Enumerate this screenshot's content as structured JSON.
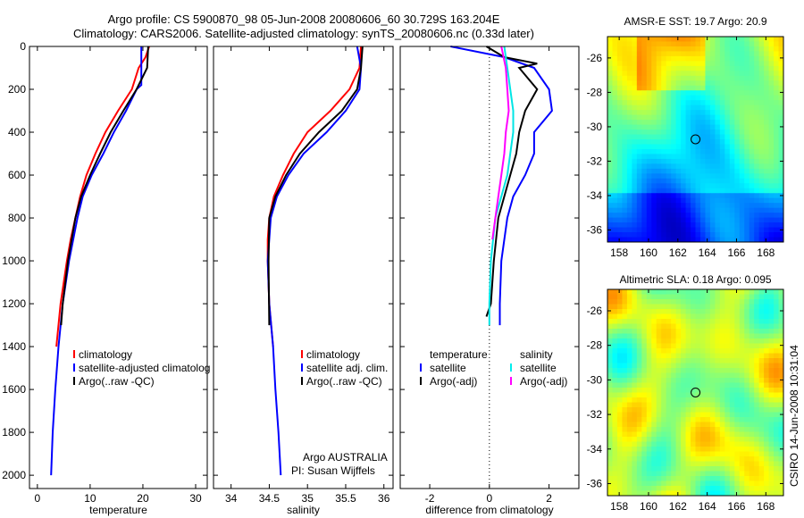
{
  "title": {
    "line1": "Argo profile: CS 5900870_98 05-Jun-2008 20080606_60 30.729S 163.204E",
    "line2": "Climatology: CARS2006. Satellite-adjusted climatology: synTS_20080606.nc (0.33d later)"
  },
  "annotations": {
    "argo_australia": "Argo AUSTRALIA",
    "pi": "PI: Susan Wijffels",
    "csiro": "CSIRO 14-Jun-2008 10:31:04"
  },
  "chart_data": [
    {
      "type": "line",
      "name": "temperature",
      "xlabel": "temperature",
      "ylabel": "",
      "xlim": [
        -1.5,
        32.2
      ],
      "ylim": [
        2062,
        0
      ],
      "xticks": [
        0,
        10,
        20,
        30
      ],
      "xtick_labels": [
        "0",
        "10",
        "20",
        "30"
      ],
      "yticks": [
        0,
        200,
        400,
        600,
        800,
        1000,
        1200,
        1400,
        1600,
        1800,
        2000
      ],
      "ytick_labels": [
        "0",
        "200",
        "400",
        "600",
        "800",
        "1000",
        "1200",
        "1400",
        "1600",
        "1800",
        "2000"
      ],
      "legend": [
        "climatology",
        "satellite-adjusted climatolog",
        "Argo(..raw -QC)"
      ],
      "series": [
        {
          "name": "climatology",
          "color": "#ff0000",
          "depth": [
            0,
            50,
            100,
            200,
            300,
            400,
            500,
            600,
            700,
            800,
            900,
            1000,
            1200,
            1400
          ],
          "values": [
            21.2,
            20.5,
            19.2,
            17.9,
            15.3,
            12.9,
            11.0,
            9.3,
            8.1,
            7.2,
            6.3,
            5.6,
            4.4,
            3.6
          ]
        },
        {
          "name": "satellite-adjusted climatology",
          "color": "#0000ff",
          "depth": [
            0,
            180,
            200,
            300,
            400,
            500,
            600,
            700,
            800,
            1000,
            1200,
            1400,
            1600,
            1800,
            2000
          ],
          "values": [
            19.7,
            19.7,
            18.8,
            16.8,
            14.5,
            12.5,
            10.3,
            8.6,
            7.6,
            6.0,
            4.8,
            4.0,
            3.4,
            2.9,
            2.6
          ]
        },
        {
          "name": "Argo(..raw -QC)",
          "color": "#000000",
          "depth": [
            0,
            100,
            150,
            200,
            300,
            400,
            500,
            600,
            700,
            800,
            1000,
            1200,
            1300
          ],
          "values": [
            21.0,
            20.8,
            19.8,
            18.8,
            16.3,
            13.9,
            11.9,
            10.0,
            8.3,
            7.2,
            5.8,
            4.8,
            4.5
          ]
        }
      ]
    },
    {
      "type": "line",
      "name": "salinity",
      "xlabel": "salinity",
      "xlim": [
        33.77,
        36.12
      ],
      "ylim": [
        2062,
        0
      ],
      "xticks": [
        34,
        34.5,
        35,
        35.5,
        36
      ],
      "xtick_labels": [
        "34",
        "34.5",
        "35",
        "35.5",
        "36"
      ],
      "legend": [
        "climatology",
        "satellite adj. clim.",
        "Argo(..raw -QC)"
      ],
      "series": [
        {
          "name": "climatology",
          "color": "#ff0000",
          "depth": [
            0,
            100,
            200,
            300,
            400,
            500,
            600,
            700,
            800,
            900,
            1000,
            1200,
            1400
          ],
          "values": [
            35.7,
            35.68,
            35.55,
            35.3,
            35.0,
            34.82,
            34.68,
            34.56,
            34.5,
            34.48,
            34.48,
            34.5,
            34.55
          ]
        },
        {
          "name": "satellite adj. clim.",
          "color": "#0000ff",
          "depth": [
            0,
            100,
            200,
            300,
            400,
            500,
            600,
            700,
            800,
            1000,
            1200,
            1400,
            1600,
            1800,
            2000
          ],
          "values": [
            35.65,
            35.7,
            35.68,
            35.5,
            35.25,
            34.95,
            34.75,
            34.6,
            34.52,
            34.48,
            34.5,
            34.55,
            34.58,
            34.62,
            34.65
          ]
        },
        {
          "name": "Argo(..raw -QC)",
          "color": "#000000",
          "depth": [
            0,
            100,
            200,
            300,
            400,
            500,
            600,
            700,
            800,
            1000,
            1300
          ],
          "values": [
            35.72,
            35.7,
            35.65,
            35.45,
            35.15,
            34.9,
            34.72,
            34.58,
            34.5,
            34.49,
            34.5
          ]
        }
      ]
    },
    {
      "type": "line",
      "name": "difference",
      "xlabel": "difference from climatology",
      "xlim": [
        -2.99,
        3.0
      ],
      "ylim": [
        2062,
        0
      ],
      "xticks": [
        -2,
        0,
        2
      ],
      "xtick_labels": [
        "-2",
        "0",
        "2"
      ],
      "legend_headers": [
        "temperature",
        "salinity"
      ],
      "legend": [
        "satellite",
        "Argo(-adj)",
        "satellite",
        "Argo(-adj)"
      ],
      "series": [
        {
          "name": "temperature satellite",
          "color": "#0000ff",
          "depth": [
            0,
            50,
            100,
            200,
            300,
            400,
            500,
            600,
            700,
            800,
            1000,
            1200,
            1300
          ],
          "values": [
            -1.3,
            0.5,
            1.5,
            2.0,
            2.1,
            1.5,
            1.5,
            1.2,
            0.8,
            0.6,
            0.4,
            0.35,
            0.35
          ]
        },
        {
          "name": "temperature Argo(-adj)",
          "color": "#000000",
          "depth": [
            0,
            50,
            80,
            100,
            200,
            300,
            400,
            500,
            600,
            700,
            800,
            1000,
            1200,
            1260
          ],
          "values": [
            -0.1,
            0.5,
            1.6,
            1.0,
            1.6,
            1.2,
            1.0,
            0.9,
            0.7,
            0.5,
            0.3,
            0.15,
            0.05,
            -0.1
          ]
        },
        {
          "name": "salinity satellite",
          "color": "#00e5e5",
          "depth": [
            0,
            100,
            200,
            300,
            400,
            500,
            600,
            700,
            800,
            1000,
            1200,
            1300
          ],
          "values": [
            0.5,
            0.6,
            0.7,
            0.8,
            0.8,
            0.7,
            0.6,
            0.4,
            0.2,
            0.05,
            0,
            0
          ]
        },
        {
          "name": "salinity Argo(-adj)",
          "color": "#ff00ff",
          "depth": [
            0,
            100,
            200,
            300,
            400,
            500,
            600,
            700,
            800,
            900
          ],
          "values": [
            0.4,
            0.55,
            0.6,
            0.65,
            0.55,
            0.5,
            0.4,
            0.3,
            0.2,
            0.1
          ]
        }
      ]
    },
    {
      "type": "heatmap",
      "name": "sst-map",
      "title": "AMSR-E SST: 19.7 Argo: 20.9",
      "xlim": [
        157.2,
        169.2
      ],
      "ylim": [
        -36.7,
        -24.76
      ],
      "xtick_labels": [
        "158",
        "160",
        "162",
        "164",
        "166",
        "168"
      ],
      "ytick_labels": [
        "-26",
        "-28",
        "-30",
        "-32",
        "-34",
        "-36"
      ],
      "marker": {
        "lon": 163.204,
        "lat": -30.729
      }
    },
    {
      "type": "heatmap",
      "name": "sla-map",
      "title": "Altimetric SLA: 0.18 Argo: 0.095",
      "xlim": [
        157.2,
        169.2
      ],
      "ylim": [
        -36.7,
        -24.76
      ],
      "xtick_labels": [
        "158",
        "160",
        "162",
        "164",
        "166",
        "168"
      ],
      "ytick_labels": [
        "-26",
        "-28",
        "-30",
        "-32",
        "-34",
        "-36"
      ],
      "marker": {
        "lon": 163.204,
        "lat": -30.729
      }
    }
  ]
}
